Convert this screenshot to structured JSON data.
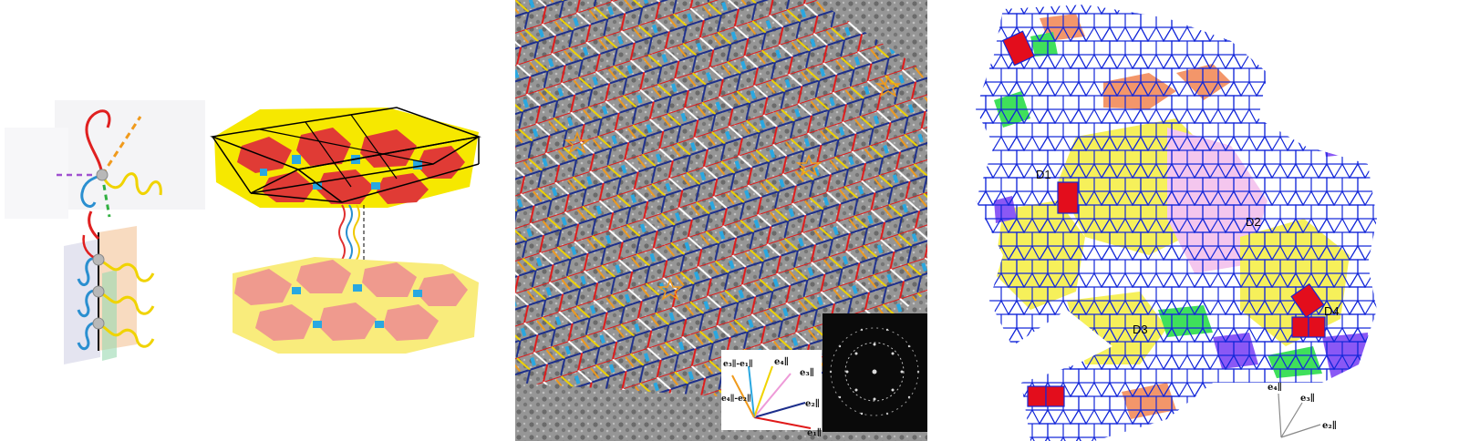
{
  "figure": {
    "panel_c": {
      "vector_key": {
        "v1": "e₁∥",
        "v2": "e₂∥",
        "v3": "e₃∥",
        "v4": "e₄∥",
        "diff31": "e₃∥-e₁∥",
        "diff42": "e₄∥-e₂∥"
      },
      "colors": {
        "red": "#e01a1a",
        "navy": "#1d2f8c",
        "yellow": "#f0d300",
        "orange": "#f09a1c",
        "blue": "#2aa7e0",
        "white": "#ffffff"
      }
    },
    "panel_d": {
      "domain_labels": [
        "D1",
        "D2",
        "D3",
        "D4"
      ],
      "basis": {
        "e2": "e₂∥",
        "e3": "e₃∥",
        "e4": "e₄∥"
      },
      "colors": {
        "tile_edge": "#1226d9",
        "yellow": "#f6f05a",
        "pink": "#f4c6ee",
        "orange": "#f3966a",
        "green": "#3fe05b",
        "purple": "#8a58f5",
        "red": "#e30d1c"
      }
    }
  }
}
